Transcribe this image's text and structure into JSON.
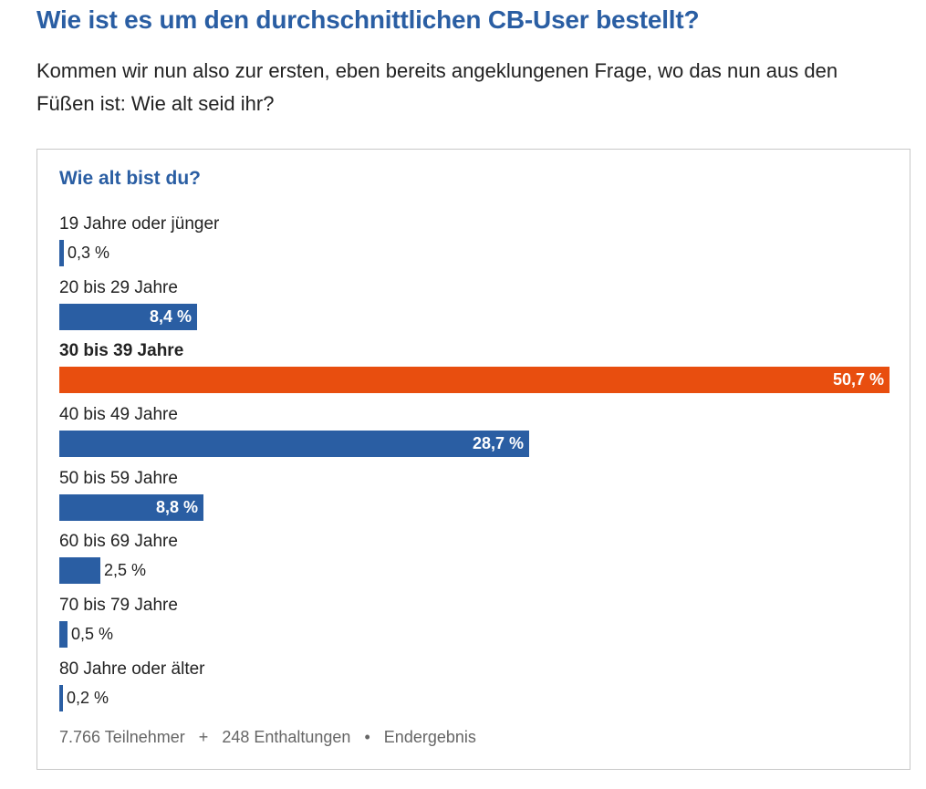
{
  "article": {
    "heading": "Wie ist es um den durchschnittlichen CB-User bestellt?",
    "intro": "Kommen wir nun also zur ersten, eben bereits angeklungenen Frage, wo das nun aus den Füßen ist: Wie alt seid ihr?"
  },
  "poll": {
    "question": "Wie alt bist du?",
    "options": [
      {
        "label": "19 Jahre oder jünger",
        "percent": 0.3,
        "display": "0,3 %",
        "winner": false
      },
      {
        "label": "20 bis 29 Jahre",
        "percent": 8.4,
        "display": "8,4 %",
        "winner": false
      },
      {
        "label": "30 bis 39 Jahre",
        "percent": 50.7,
        "display": "50,7 %",
        "winner": true
      },
      {
        "label": "40 bis 49 Jahre",
        "percent": 28.7,
        "display": "28,7 %",
        "winner": false
      },
      {
        "label": "50 bis 59 Jahre",
        "percent": 8.8,
        "display": "8,8 %",
        "winner": false
      },
      {
        "label": "60 bis 69 Jahre",
        "percent": 2.5,
        "display": "2,5 %",
        "winner": false
      },
      {
        "label": "70 bis 79 Jahre",
        "percent": 0.5,
        "display": "0,5 %",
        "winner": false
      },
      {
        "label": "80 Jahre oder älter",
        "percent": 0.2,
        "display": "0,2 %",
        "winner": false
      }
    ],
    "max_percent": 50.7,
    "footer": {
      "participants": "7.766 Teilnehmer",
      "separator_plus": "+",
      "abstentions": "248 Enthaltungen",
      "separator_dot": "•",
      "status": "Endergebnis"
    }
  },
  "colors": {
    "accent_blue": "#2a5ea3",
    "winner_orange": "#e84e0f"
  }
}
